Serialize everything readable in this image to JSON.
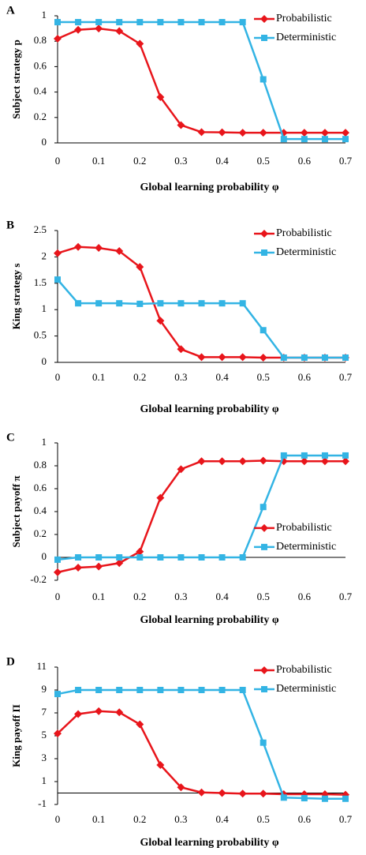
{
  "chart_data": [
    {
      "type": "line",
      "panel_label": "A",
      "ylabel": "Subject strategy p",
      "xlabel": "Global learning probability φ",
      "x": [
        0,
        0.05,
        0.1,
        0.15,
        0.2,
        0.25,
        0.3,
        0.35,
        0.4,
        0.45,
        0.5,
        0.55,
        0.6,
        0.65,
        0.7
      ],
      "xlim": [
        0,
        0.7
      ],
      "xticks": [
        0,
        0.1,
        0.2,
        0.3,
        0.4,
        0.5,
        0.6,
        0.7
      ],
      "ylim": [
        0,
        1
      ],
      "yticks": [
        0,
        0.2,
        0.4,
        0.6,
        0.8,
        1
      ],
      "legend": "upper right",
      "series": [
        {
          "name": "Probabilistic",
          "color": "#e8151b",
          "marker": "diamond",
          "values": [
            0.82,
            0.89,
            0.9,
            0.88,
            0.78,
            0.36,
            0.14,
            0.085,
            0.083,
            0.08,
            0.08,
            0.08,
            0.08,
            0.08,
            0.08
          ]
        },
        {
          "name": "Deterministic",
          "color": "#33b4e4",
          "marker": "square",
          "values": [
            0.95,
            0.95,
            0.95,
            0.95,
            0.95,
            0.95,
            0.95,
            0.95,
            0.95,
            0.95,
            0.5,
            0.03,
            0.03,
            0.03,
            0.03
          ]
        }
      ]
    },
    {
      "type": "line",
      "panel_label": "B",
      "ylabel": "King strategy s",
      "xlabel": "Global learning probability φ",
      "x": [
        0,
        0.05,
        0.1,
        0.15,
        0.2,
        0.25,
        0.3,
        0.35,
        0.4,
        0.45,
        0.5,
        0.55,
        0.6,
        0.65,
        0.7
      ],
      "xlim": [
        0,
        0.7
      ],
      "xticks": [
        0,
        0.1,
        0.2,
        0.3,
        0.4,
        0.5,
        0.6,
        0.7
      ],
      "ylim": [
        0,
        2.5
      ],
      "yticks": [
        0,
        0.5,
        1,
        1.5,
        2,
        2.5
      ],
      "legend": "upper right",
      "series": [
        {
          "name": "Probabilistic",
          "color": "#e8151b",
          "marker": "diamond",
          "values": [
            2.07,
            2.19,
            2.17,
            2.11,
            1.81,
            0.79,
            0.25,
            0.1,
            0.1,
            0.1,
            0.09,
            0.09,
            0.09,
            0.09,
            0.09
          ]
        },
        {
          "name": "Deterministic",
          "color": "#33b4e4",
          "marker": "square",
          "values": [
            1.57,
            1.12,
            1.12,
            1.12,
            1.11,
            1.12,
            1.12,
            1.12,
            1.12,
            1.12,
            0.61,
            0.09,
            0.09,
            0.09,
            0.09
          ]
        }
      ]
    },
    {
      "type": "line",
      "panel_label": "C",
      "ylabel": "Subject payoff π",
      "xlabel": "Global learning probability φ",
      "x": [
        0,
        0.05,
        0.1,
        0.15,
        0.2,
        0.25,
        0.3,
        0.35,
        0.4,
        0.45,
        0.5,
        0.55,
        0.6,
        0.65,
        0.7
      ],
      "xlim": [
        0,
        0.7
      ],
      "xticks": [
        0,
        0.1,
        0.2,
        0.3,
        0.4,
        0.5,
        0.6,
        0.7
      ],
      "ylim": [
        -0.2,
        1
      ],
      "yticks": [
        -0.2,
        0,
        0.2,
        0.4,
        0.6,
        0.8,
        1
      ],
      "legend": "lower right",
      "series": [
        {
          "name": "Probabilistic",
          "color": "#e8151b",
          "marker": "diamond",
          "values": [
            -0.13,
            -0.09,
            -0.08,
            -0.05,
            0.05,
            0.52,
            0.77,
            0.84,
            0.84,
            0.84,
            0.845,
            0.84,
            0.84,
            0.84,
            0.84
          ]
        },
        {
          "name": "Deterministic",
          "color": "#33b4e4",
          "marker": "square",
          "values": [
            -0.02,
            0,
            0,
            0,
            0,
            0,
            0,
            0,
            0,
            0,
            0.44,
            0.89,
            0.89,
            0.89,
            0.89
          ]
        }
      ]
    },
    {
      "type": "line",
      "panel_label": "D",
      "ylabel": "King payoff Π",
      "xlabel": "Global learning probability φ",
      "x": [
        0,
        0.05,
        0.1,
        0.15,
        0.2,
        0.25,
        0.3,
        0.35,
        0.4,
        0.45,
        0.5,
        0.55,
        0.6,
        0.65,
        0.7
      ],
      "xlim": [
        0,
        0.7
      ],
      "xticks": [
        0,
        0.1,
        0.2,
        0.3,
        0.4,
        0.5,
        0.6,
        0.7
      ],
      "ylim": [
        -1,
        11
      ],
      "yticks": [
        -1,
        1,
        3,
        5,
        7,
        9,
        11
      ],
      "legend": "upper right",
      "series": [
        {
          "name": "Probabilistic",
          "color": "#e8151b",
          "marker": "diamond",
          "values": [
            5.2,
            6.9,
            7.15,
            7.05,
            6.0,
            2.45,
            0.5,
            0.05,
            0,
            -0.05,
            -0.05,
            -0.1,
            -0.1,
            -0.1,
            -0.15
          ]
        },
        {
          "name": "Deterministic",
          "color": "#33b4e4",
          "marker": "square",
          "values": [
            8.65,
            9,
            9,
            9,
            9,
            9,
            9,
            9,
            9,
            9,
            4.4,
            -0.4,
            -0.45,
            -0.5,
            -0.5
          ]
        }
      ]
    }
  ]
}
